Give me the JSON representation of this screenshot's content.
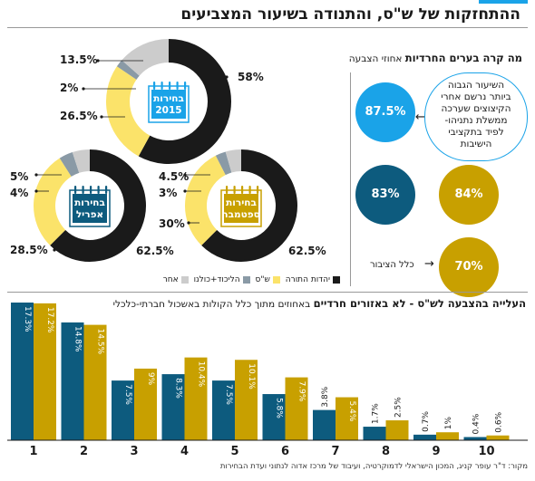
{
  "title": "ההתחזקות של ש\"ס, והתנודה בשיעור המצביעים",
  "right_panel": {
    "heading_bold": "מה קרה בערים החרדיות",
    "heading_rest": "אחוזי הצבעה",
    "note": [
      "השיעור הגבוה",
      "ביותר נרשם אחרי",
      "הקיצוצים שערכה",
      "ממשלת נתניהו-",
      "לפיד בתקציבי",
      "הישיבות"
    ],
    "circles": [
      {
        "value": "87.5%",
        "color": "#1aa3e8"
      },
      {
        "value": "83%",
        "color": "#0d5b7e"
      },
      {
        "value": "84%",
        "color": "#c8a000"
      },
      {
        "value": "70%",
        "color": "#c8a000"
      }
    ],
    "public_label": "כלל הציבור"
  },
  "elections": [
    {
      "label_lines": [
        "בחירות",
        "2015"
      ],
      "icon_color": "#1aa3e8"
    },
    {
      "label_lines": [
        "בחירות",
        "אפריל"
      ],
      "icon_color": "#0d5b7e"
    },
    {
      "label_lines": [
        "בחירות",
        "ספטמבר"
      ],
      "icon_color": "#c8a000"
    }
  ],
  "donut_labels": {
    "d2015": {
      "other": "13.5%",
      "likud": "2%",
      "shas": "26.5%",
      "utj": "58%"
    },
    "dapril": {
      "other": "5%",
      "likud": "4%",
      "shas": "28.5%",
      "utj": "62.5%"
    },
    "dsept": {
      "other": "4.5%",
      "likud": "3%",
      "shas": "30%",
      "utj": "62.5%"
    }
  },
  "legend": [
    {
      "label": "יהדות התורה",
      "color": "#1a1a1a"
    },
    {
      "label": "ש\"ס",
      "color": "#fbe36a"
    },
    {
      "label": "הליכוד+כולנו",
      "color": "#8a9aa6"
    },
    {
      "label": "אחר",
      "color": "#cccccc"
    }
  ],
  "colors": {
    "dark_blue": "#0d5b7e",
    "gold": "#c8a000",
    "light_blue": "#1aa3e8",
    "black": "#1a1a1a",
    "yellow": "#fbe36a",
    "gray": "#8a9aa6",
    "light_gray": "#cccccc"
  },
  "bottom": {
    "heading_bold": "העלייה בהצבעה לש\"ס - לא באזורים חרדיים",
    "heading_rest": "באחוזים מתוך כלל הקולות באשכול חברתי-כלכלי"
  },
  "source": "מקור: ד\"ר עופר קניג, המכון הישראלי לדמוקרטיה, ועיבוד של מרכז אדוה לנתוני ועדת הבחירות",
  "chart_data": [
    {
      "type": "pie",
      "title": "בחירות 2015",
      "categories": [
        "יהדות התורה",
        "ש\"ס",
        "הליכוד+כולנו",
        "אחר"
      ],
      "values": [
        58,
        26.5,
        2,
        13.5
      ]
    },
    {
      "type": "pie",
      "title": "בחירות אפריל",
      "categories": [
        "יהדות התורה",
        "ש\"ס",
        "הליכוד+כולנו",
        "אחר"
      ],
      "values": [
        62.5,
        28.5,
        4,
        5
      ]
    },
    {
      "type": "pie",
      "title": "בחירות ספטמבר",
      "categories": [
        "יהדות התורה",
        "ש\"ס",
        "הליכוד+כולנו",
        "אחר"
      ],
      "values": [
        62.5,
        30,
        3,
        4.5
      ]
    },
    {
      "type": "bar",
      "title": "העלייה בהצבעה לש\"ס - לא באזורים חרדיים",
      "categories": [
        "1",
        "2",
        "3",
        "4",
        "5",
        "6",
        "7",
        "8",
        "9",
        "10"
      ],
      "series": [
        {
          "values": [
            17.3,
            14.8,
            7.5,
            8.3,
            7.5,
            5.8,
            3.8,
            1.7,
            0.7,
            0.4
          ],
          "labels": [
            "17.3%",
            "14.8%",
            "7.5%",
            "8.3%",
            "7.5%",
            "5.8%",
            "3.8%",
            "1.7%",
            "0.7%",
            "0.4%"
          ],
          "color": "#0d5b7e"
        },
        {
          "values": [
            17.2,
            14.5,
            9,
            10.4,
            10.1,
            7.9,
            5.4,
            2.5,
            1,
            0.6
          ],
          "labels": [
            "17.2%",
            "14.5%",
            "9%",
            "10.4%",
            "10.1%",
            "7.9%",
            "5.4%",
            "2.5%",
            "1%",
            "0.6%"
          ],
          "color": "#c8a000"
        }
      ],
      "ylim": [
        0,
        17.3
      ]
    }
  ]
}
